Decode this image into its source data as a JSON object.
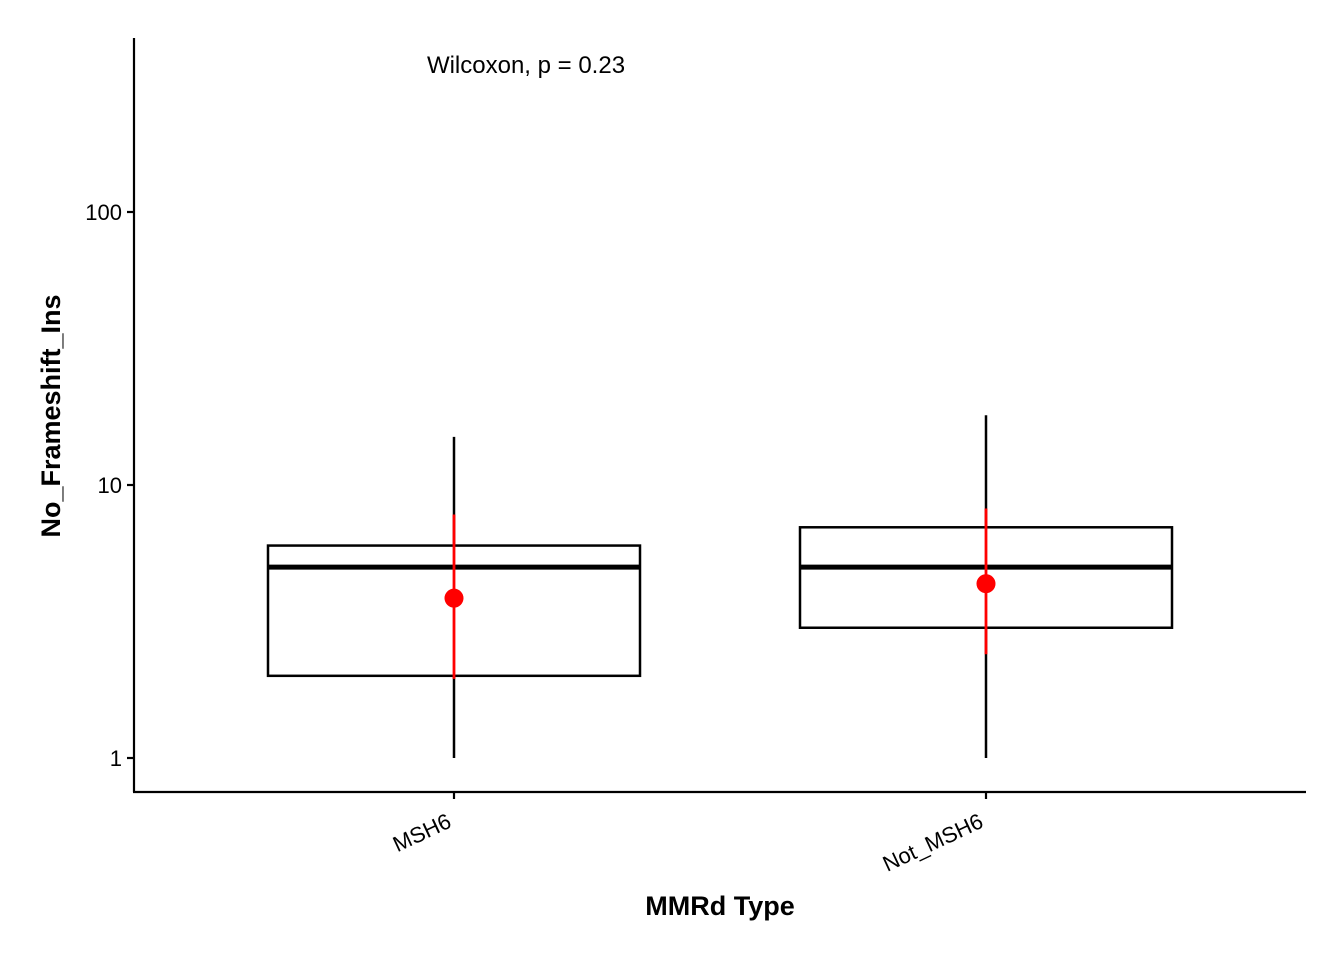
{
  "chart_data": {
    "type": "box",
    "xlabel": "MMRd Type",
    "ylabel": "No_Frameshift_Ins",
    "yscale": "log10",
    "ylim": [
      0.78,
      400
    ],
    "yticks": [
      1,
      10,
      100
    ],
    "ytick_labels": [
      "1",
      "10",
      "100"
    ],
    "categories": [
      "MSH6",
      "Not_MSH6"
    ],
    "annotation": "Wilcoxon, p = 0.23",
    "boxes": [
      {
        "category": "MSH6",
        "whisker_low": 1,
        "q1": 2,
        "median": 5,
        "q3": 6,
        "whisker_high": 15,
        "mean": 3.85,
        "ci_low": 1.95,
        "ci_high": 7.8
      },
      {
        "category": "Not_MSH6",
        "whisker_low": 1,
        "q1": 3,
        "median": 5,
        "q3": 7,
        "whisker_high": 18,
        "mean": 4.35,
        "ci_low": 2.4,
        "ci_high": 8.2
      }
    ],
    "colors": {
      "box": "#000000",
      "mean": "#ff0000",
      "axis": "#000000"
    },
    "grid": false,
    "legend": "none"
  }
}
